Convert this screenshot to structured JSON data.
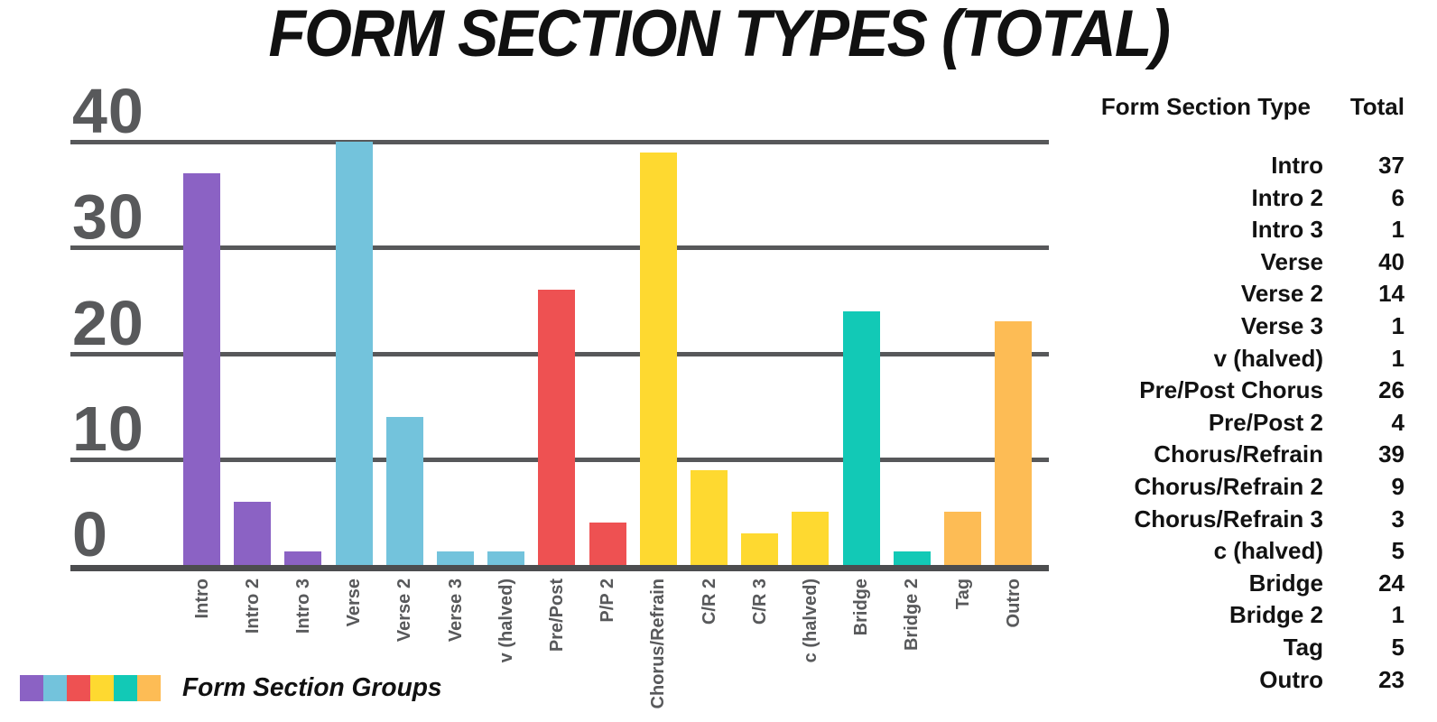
{
  "title": "FORM SECTION TYPES (TOTAL)",
  "legend": {
    "label": "Form Section Groups",
    "colors": [
      "#8B62C4",
      "#73C3DC",
      "#EE5152",
      "#FED930",
      "#12C9B6",
      "#FDBC55"
    ]
  },
  "table": {
    "header": {
      "type": "Form Section Type",
      "total": "Total"
    },
    "rows": [
      {
        "label": "Intro",
        "total": "37"
      },
      {
        "label": "Intro 2",
        "total": "6"
      },
      {
        "label": "Intro 3",
        "total": "1"
      },
      {
        "label": "Verse",
        "total": "40"
      },
      {
        "label": "Verse 2",
        "total": "14"
      },
      {
        "label": "Verse 3",
        "total": "1"
      },
      {
        "label": "v (halved)",
        "total": "1"
      },
      {
        "label": "Pre/Post Chorus",
        "total": "26"
      },
      {
        "label": "Pre/Post 2",
        "total": "4"
      },
      {
        "label": "Chorus/Refrain",
        "total": "39"
      },
      {
        "label": "Chorus/Refrain 2",
        "total": "9"
      },
      {
        "label": "Chorus/Refrain 3",
        "total": "3"
      },
      {
        "label": "c (halved)",
        "total": "5"
      },
      {
        "label": "Bridge",
        "total": "24"
      },
      {
        "label": "Bridge 2",
        "total": "1"
      },
      {
        "label": "Tag",
        "total": "5"
      },
      {
        "label": "Outro",
        "total": "23"
      }
    ]
  },
  "chart_data": {
    "type": "bar",
    "title": "FORM SECTION TYPES (TOTAL)",
    "categories": [
      "Intro",
      "Intro 2",
      "Intro 3",
      "Verse",
      "Verse 2",
      "Verse 3",
      "v (halved)",
      "Pre/Post",
      "P/P 2",
      "Chorus/Refrain",
      "C/R 2",
      "C/R 3",
      "c (halved)",
      "Bridge",
      "Bridge 2",
      "Tag",
      "Outro"
    ],
    "values": [
      37,
      6,
      1,
      40,
      14,
      1,
      1,
      26,
      4,
      39,
      9,
      3,
      5,
      24,
      1,
      5,
      23
    ],
    "bar_colors": [
      "#8B62C4",
      "#8B62C4",
      "#8B62C4",
      "#73C3DC",
      "#73C3DC",
      "#73C3DC",
      "#73C3DC",
      "#EE5152",
      "#EE5152",
      "#FED930",
      "#FED930",
      "#FED930",
      "#FED930",
      "#12C9B6",
      "#12C9B6",
      "#FDBC55",
      "#FDBC55"
    ],
    "xlabel": "",
    "ylabel": "",
    "y_ticks": [
      "40",
      "30",
      "20",
      "10",
      "0"
    ],
    "ylim": [
      0,
      40
    ],
    "grid": true,
    "legend_label": "Form Section Groups",
    "legend_position": "bottom-left",
    "gridline_color": "#57585A",
    "axis_color": "#4C4D4F",
    "tick_label_color": "#58595B"
  }
}
